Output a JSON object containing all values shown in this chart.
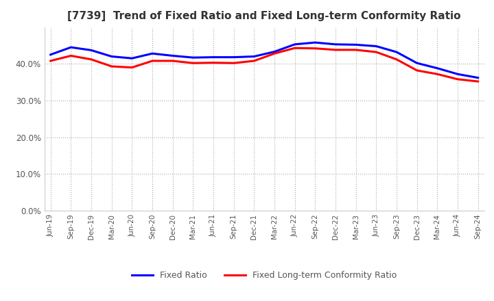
{
  "title": "[7739]  Trend of Fixed Ratio and Fixed Long-term Conformity Ratio",
  "legend_labels": [
    "Fixed Ratio",
    "Fixed Long-term Conformity Ratio"
  ],
  "line_colors": [
    "#0000ff",
    "#ff0000"
  ],
  "background_color": "#ffffff",
  "grid_color": "#aaaaaa",
  "ylim": [
    0.0,
    0.5
  ],
  "yticks": [
    0.0,
    0.1,
    0.2,
    0.3,
    0.4
  ],
  "dates": [
    "Jun-19",
    "Sep-19",
    "Dec-19",
    "Mar-20",
    "Jun-20",
    "Sep-20",
    "Dec-20",
    "Mar-21",
    "Jun-21",
    "Sep-21",
    "Dec-21",
    "Mar-22",
    "Jun-22",
    "Sep-22",
    "Dec-22",
    "Mar-23",
    "Jun-23",
    "Sep-23",
    "Dec-23",
    "Mar-24",
    "Jun-24",
    "Sep-24"
  ],
  "fixed_ratio": [
    0.425,
    0.445,
    0.437,
    0.42,
    0.415,
    0.428,
    0.422,
    0.417,
    0.418,
    0.418,
    0.42,
    0.433,
    0.453,
    0.458,
    0.453,
    0.452,
    0.448,
    0.432,
    0.402,
    0.388,
    0.372,
    0.362
  ],
  "fixed_lt_ratio": [
    0.408,
    0.422,
    0.412,
    0.393,
    0.39,
    0.408,
    0.408,
    0.402,
    0.403,
    0.402,
    0.408,
    0.428,
    0.443,
    0.442,
    0.438,
    0.438,
    0.432,
    0.412,
    0.382,
    0.372,
    0.358,
    0.352
  ]
}
